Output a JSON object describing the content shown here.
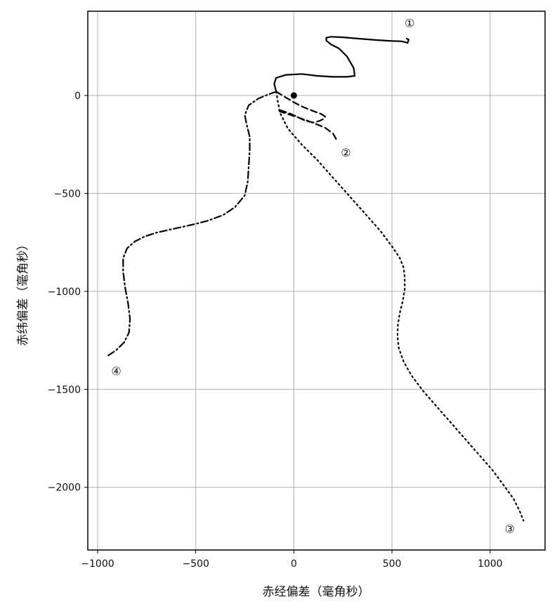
{
  "chart_data": {
    "type": "line",
    "title": "",
    "xlabel": "赤经偏差（毫角秒）",
    "ylabel": "赤纬偏差（毫角秒）",
    "xlim": [
      -1050,
      1280
    ],
    "ylim": [
      -2320,
      430
    ],
    "xticks": [
      -1000,
      -500,
      0,
      500,
      1000
    ],
    "yticks": [
      0,
      -500,
      -1000,
      -1500,
      -2000
    ],
    "xtick_labels": [
      "−1000",
      "−500",
      "0",
      "500",
      "1000"
    ],
    "ytick_labels": [
      "0",
      "−500",
      "−1000",
      "−1500",
      "−2000"
    ],
    "grid": true,
    "origin_marker": {
      "x": 0,
      "y": 0
    },
    "series": [
      {
        "label": "①",
        "line_style": "solid",
        "points": [
          [
            -90,
            20
          ],
          [
            -100,
            60
          ],
          [
            -90,
            90
          ],
          [
            -40,
            105
          ],
          [
            40,
            110
          ],
          [
            120,
            100
          ],
          [
            200,
            95
          ],
          [
            270,
            95
          ],
          [
            310,
            100
          ],
          [
            305,
            140
          ],
          [
            270,
            200
          ],
          [
            230,
            240
          ],
          [
            190,
            260
          ],
          [
            165,
            280
          ],
          [
            165,
            295
          ],
          [
            190,
            300
          ],
          [
            250,
            297
          ],
          [
            330,
            290
          ],
          [
            420,
            283
          ],
          [
            500,
            278
          ],
          [
            545,
            277
          ],
          [
            570,
            272
          ],
          [
            580,
            268
          ],
          [
            585,
            285
          ],
          [
            575,
            290
          ]
        ],
        "label_pos": [
          590,
          370
        ]
      },
      {
        "label": "②",
        "line_style": "dashed",
        "points": [
          [
            -90,
            20
          ],
          [
            -50,
            -5
          ],
          [
            0,
            -35
          ],
          [
            50,
            -60
          ],
          [
            100,
            -80
          ],
          [
            140,
            -95
          ],
          [
            160,
            -108
          ],
          [
            155,
            -118
          ],
          [
            130,
            -130
          ],
          [
            100,
            -138
          ],
          [
            60,
            -130
          ],
          [
            20,
            -110
          ],
          [
            -20,
            -92
          ],
          [
            -60,
            -78
          ],
          [
            -80,
            -72
          ],
          [
            -70,
            -82
          ],
          [
            -30,
            -95
          ],
          [
            30,
            -115
          ],
          [
            100,
            -140
          ],
          [
            160,
            -165
          ],
          [
            200,
            -195
          ],
          [
            220,
            -230
          ]
        ],
        "label_pos": [
          265,
          -290
        ]
      },
      {
        "label": "③",
        "line_style": "dotted",
        "points": [
          [
            -90,
            20
          ],
          [
            -80,
            -40
          ],
          [
            -70,
            -90
          ],
          [
            -30,
            -170
          ],
          [
            40,
            -250
          ],
          [
            120,
            -330
          ],
          [
            200,
            -420
          ],
          [
            280,
            -510
          ],
          [
            360,
            -600
          ],
          [
            440,
            -690
          ],
          [
            500,
            -770
          ],
          [
            540,
            -830
          ],
          [
            560,
            -880
          ],
          [
            565,
            -930
          ],
          [
            565,
            -990
          ],
          [
            555,
            -1050
          ],
          [
            540,
            -1110
          ],
          [
            530,
            -1170
          ],
          [
            528,
            -1230
          ],
          [
            535,
            -1290
          ],
          [
            560,
            -1360
          ],
          [
            600,
            -1430
          ],
          [
            660,
            -1510
          ],
          [
            730,
            -1590
          ],
          [
            800,
            -1670
          ],
          [
            870,
            -1750
          ],
          [
            940,
            -1830
          ],
          [
            1010,
            -1910
          ],
          [
            1070,
            -1990
          ],
          [
            1120,
            -2060
          ],
          [
            1150,
            -2120
          ],
          [
            1170,
            -2170
          ]
        ],
        "label_pos": [
          1100,
          -2210
        ]
      },
      {
        "label": "④",
        "line_style": "dashdot",
        "points": [
          [
            -90,
            20
          ],
          [
            -130,
            5
          ],
          [
            -180,
            -15
          ],
          [
            -230,
            -50
          ],
          [
            -250,
            -100
          ],
          [
            -240,
            -150
          ],
          [
            -225,
            -210
          ],
          [
            -225,
            -280
          ],
          [
            -230,
            -360
          ],
          [
            -235,
            -440
          ],
          [
            -250,
            -510
          ],
          [
            -300,
            -570
          ],
          [
            -360,
            -610
          ],
          [
            -440,
            -640
          ],
          [
            -520,
            -660
          ],
          [
            -610,
            -680
          ],
          [
            -700,
            -700
          ],
          [
            -760,
            -720
          ],
          [
            -810,
            -745
          ],
          [
            -850,
            -780
          ],
          [
            -870,
            -830
          ],
          [
            -870,
            -900
          ],
          [
            -860,
            -980
          ],
          [
            -845,
            -1060
          ],
          [
            -835,
            -1140
          ],
          [
            -840,
            -1210
          ],
          [
            -865,
            -1260
          ],
          [
            -905,
            -1300
          ],
          [
            -950,
            -1330
          ]
        ],
        "label_pos": [
          -905,
          -1405
        ]
      }
    ]
  }
}
